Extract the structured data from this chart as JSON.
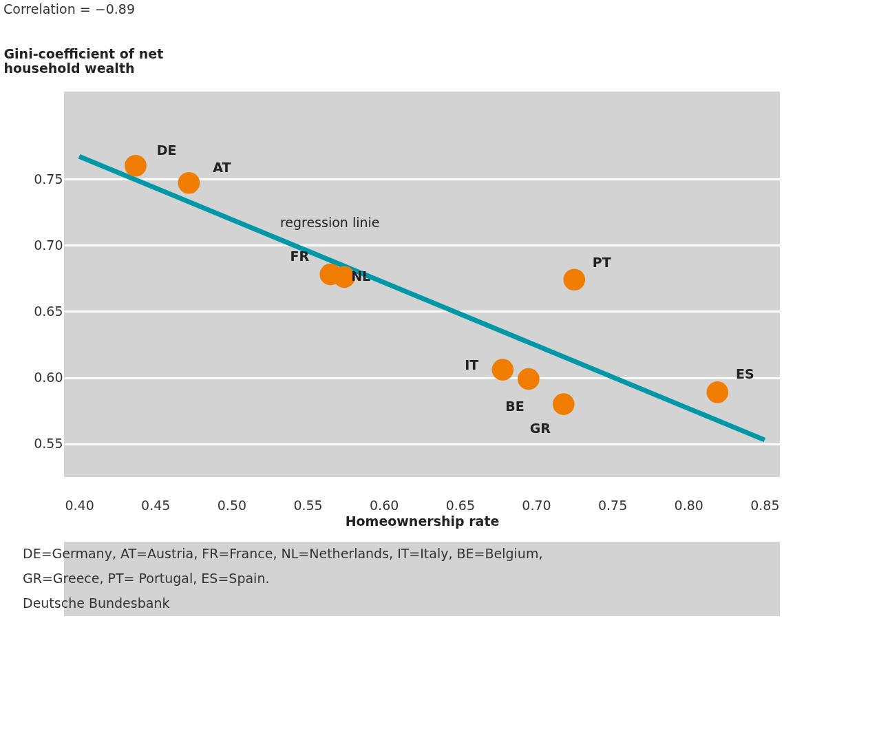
{
  "chart_data": {
    "type": "scatter",
    "title": "Correlation = −0.89",
    "xlabel": "Homeownership rate",
    "ylabel": "Gini-coefficient of net\nhousehold wealth",
    "xlim": [
      0.39,
      0.86
    ],
    "ylim": [
      0.525,
      0.816
    ],
    "xticks": [
      {
        "value": 0.4,
        "label": "0.40"
      },
      0.45,
      {
        "value": 0.5,
        "label": "0.50"
      },
      0.55,
      {
        "value": 0.6,
        "label": "0.60"
      },
      0.65,
      {
        "value": 0.7,
        "label": "0.70"
      },
      0.75,
      {
        "value": 0.8,
        "label": "0.80"
      },
      0.85
    ],
    "yticks": [
      0.55,
      {
        "value": 0.6,
        "label": "0.60"
      },
      0.65,
      {
        "value": 0.7,
        "label": "0.70"
      },
      0.75
    ],
    "grid": "y",
    "series": [
      {
        "color": "#f07d00",
        "marker": "circle",
        "x": [
          0.437,
          0.472,
          0.565,
          0.574,
          0.725,
          0.678,
          0.695,
          0.718,
          0.819
        ],
        "values": [
          0.76,
          0.747,
          0.678,
          0.676,
          0.674,
          0.606,
          0.599,
          0.58,
          0.589
        ]
      },
      {
        "type": "line",
        "marker": "none",
        "color": "#0097a7",
        "x": [
          0.4,
          0.85
        ],
        "values": [
          0.767,
          0.553
        ]
      }
    ],
    "annotations": [
      {
        "text": "DE",
        "x": 0.437,
        "y": 0.76
      },
      {
        "text": "AT",
        "x": 0.472,
        "y": 0.747
      },
      {
        "text": "FR",
        "x": 0.565,
        "y": 0.678
      },
      {
        "text": "NL",
        "x": 0.574,
        "y": 0.676
      },
      {
        "text": "PT",
        "x": 0.725,
        "y": 0.674
      },
      {
        "text": "IT",
        "x": 0.678,
        "y": 0.606
      },
      {
        "text": "BE",
        "x": 0.695,
        "y": 0.599
      },
      {
        "text": "GR",
        "x": 0.718,
        "y": 0.58
      },
      {
        "text": "ES",
        "x": 0.819,
        "y": 0.589
      },
      {
        "text": "regression linie",
        "x": 0.56,
        "y": 0.691
      },
      "DE=Germany,  AT=Austria,  FR=France,  NL=Netherlands,  IT=Italy,  BE=Belgium,\nGR=Greece,  PT= Portugal,  ES=Spain.",
      "Deutsche Bundesbank"
    ]
  }
}
